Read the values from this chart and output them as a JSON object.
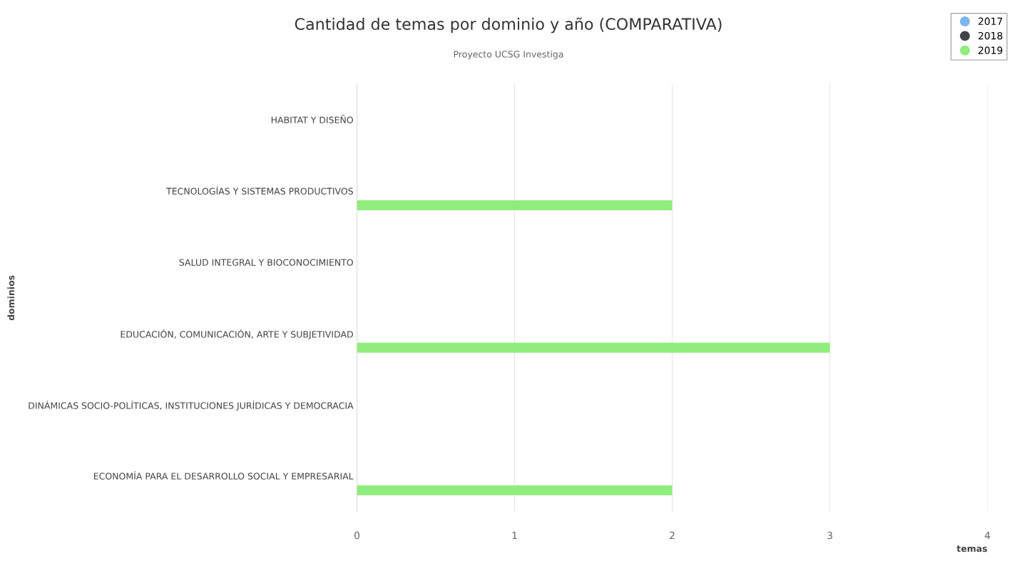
{
  "chart_data": {
    "type": "bar",
    "orientation": "horizontal",
    "title": "Cantidad de temas por dominio y año (COMPARATIVA)",
    "subtitle": "Proyecto UCSG Investiga",
    "xlabel": "temas",
    "ylabel": "dominios",
    "categories": [
      "HABITAT Y DISEÑO",
      "TECNOLOGÍAS Y SISTEMAS PRODUCTIVOS",
      "SALUD INTEGRAL Y BIOCONOCIMIENTO",
      "EDUCACIÓN, COMUNICACIÓN, ARTE Y SUBJETIVIDAD",
      "DINÁMICAS SOCIO-POLÍTICAS, INSTITUCIONES JURÍDICAS Y DEMOCRACIA",
      "ECONOMÍA PARA EL DESARROLLO SOCIAL Y EMPRESARIAL"
    ],
    "series": [
      {
        "name": "2017",
        "color": "#7cb5ec",
        "values": [
          0,
          0,
          0,
          0,
          0,
          0
        ]
      },
      {
        "name": "2018",
        "color": "#434348",
        "values": [
          0,
          0,
          0,
          0,
          0,
          0
        ]
      },
      {
        "name": "2019",
        "color": "#90ed7d",
        "values": [
          0,
          2,
          0,
          3,
          0,
          2
        ]
      }
    ],
    "xlim": [
      0,
      4
    ],
    "xticks": [
      0,
      1,
      2,
      3,
      4
    ],
    "grid": "x",
    "legend": "top right"
  }
}
